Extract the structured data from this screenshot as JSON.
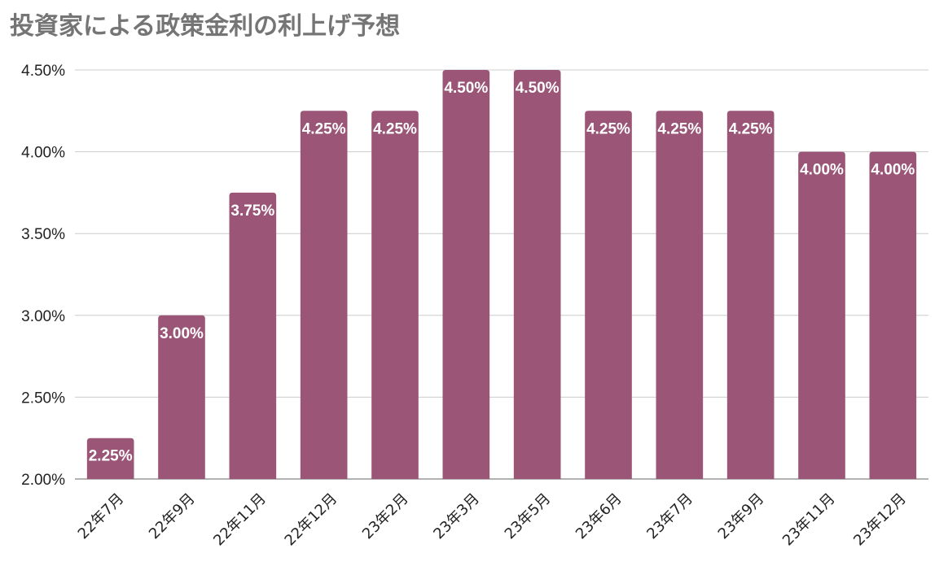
{
  "chart_data": {
    "type": "bar",
    "title": "投資家による政策金利の利上げ予想",
    "categories": [
      "22年7月",
      "22年9月",
      "22年11月",
      "22年12月",
      "23年2月",
      "23年3月",
      "23年5月",
      "23年6月",
      "23年7月",
      "23年9月",
      "23年11月",
      "23年12月"
    ],
    "values": [
      2.25,
      3.0,
      3.75,
      4.25,
      4.25,
      4.5,
      4.5,
      4.25,
      4.25,
      4.25,
      4.0,
      4.0
    ],
    "data_labels": [
      "2.25%",
      "3.00%",
      "3.75%",
      "4.25%",
      "4.25%",
      "4.50%",
      "4.50%",
      "4.25%",
      "4.25%",
      "4.25%",
      "4.00%",
      "4.00%"
    ],
    "ylim": [
      2.0,
      4.5
    ],
    "yticks": [
      2.0,
      2.5,
      3.0,
      3.5,
      4.0,
      4.5
    ],
    "ytick_labels": [
      "2.00%",
      "2.50%",
      "3.00%",
      "3.50%",
      "4.00%",
      "4.50%"
    ],
    "xlabel": "",
    "ylabel": "",
    "grid": true,
    "legend": "none",
    "colors": {
      "bar": "#9a5577",
      "grid": "#cccccc",
      "title": "#757575",
      "text": "#222222"
    }
  }
}
